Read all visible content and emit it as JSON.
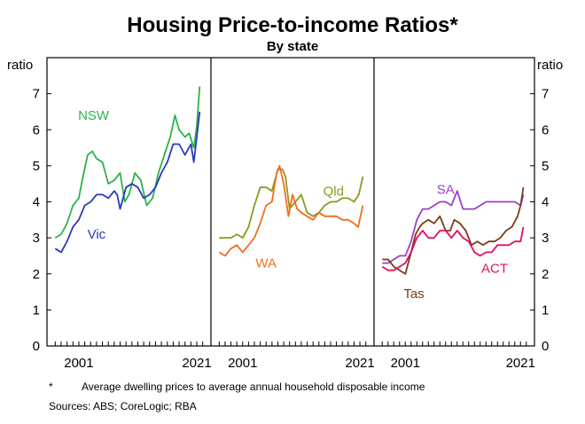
{
  "chart_data": {
    "type": "line",
    "title": "Housing Price-to-income Ratios*",
    "subtitle": "By state",
    "ylabel_left": "ratio",
    "ylabel_right": "ratio",
    "ylim": [
      0,
      8
    ],
    "yticks": [
      0,
      1,
      2,
      3,
      4,
      5,
      6,
      7
    ],
    "xlim": [
      1996.5,
      2022.5
    ],
    "xticks": [
      2001,
      2021
    ],
    "notes": {
      "footnote_marker": "*",
      "footnote": "Average dwelling prices to average annual household disposable income",
      "sources": "Sources: ABS; CoreLogic; RBA"
    },
    "panels": [
      {
        "name": "panel-left",
        "series": [
          {
            "name": "NSW",
            "color": "#2bb34a",
            "x": [
              1997,
              1998,
              1999,
              2000,
              2001,
              2001.7,
              2002.5,
              2003.3,
              2004,
              2005,
              2006,
              2007,
              2008,
              2008.8,
              2009.5,
              2010.5,
              2011.5,
              2012.5,
              2013.5,
              2014.5,
              2015.5,
              2016.5,
              2017.3,
              2018,
              2019,
              2019.7,
              2020.5,
              2021,
              2021.5
            ],
            "values": [
              3.0,
              3.1,
              3.4,
              3.9,
              4.1,
              4.7,
              5.3,
              5.4,
              5.2,
              5.1,
              4.5,
              4.6,
              4.8,
              4.0,
              4.2,
              4.8,
              4.6,
              3.9,
              4.1,
              4.8,
              5.3,
              5.8,
              6.4,
              6.0,
              5.8,
              5.9,
              5.5,
              6.1,
              7.2
            ]
          },
          {
            "name": "Vic",
            "color": "#2b3ab8",
            "x": [
              1997,
              1998,
              1999,
              2000,
              2001,
              2002,
              2003,
              2004,
              2005,
              2006,
              2007,
              2007.5,
              2008,
              2009,
              2010,
              2011,
              2012,
              2013,
              2014,
              2015,
              2016,
              2017,
              2018,
              2019,
              2020,
              2020.5,
              2021,
              2021.5
            ],
            "values": [
              2.7,
              2.6,
              2.9,
              3.3,
              3.5,
              3.9,
              4.0,
              4.2,
              4.2,
              4.1,
              4.3,
              4.2,
              3.8,
              4.4,
              4.5,
              4.4,
              4.1,
              4.2,
              4.4,
              4.8,
              5.1,
              5.6,
              5.6,
              5.3,
              5.6,
              5.1,
              5.8,
              6.5
            ]
          }
        ],
        "labels": [
          {
            "text": "NSW",
            "series": "NSW",
            "x": 2003.5,
            "y": 6.4
          },
          {
            "text": "Vic",
            "series": "Vic",
            "x": 2004.0,
            "y": 3.1
          }
        ]
      },
      {
        "name": "panel-middle",
        "series": [
          {
            "name": "Qld",
            "color": "#8c9a1e",
            "x": [
              1997,
              1998,
              1999,
              2000,
              2001,
              2002,
              2003,
              2004,
              2005,
              2006,
              2007,
              2007.8,
              2008.3,
              2009,
              2010,
              2011,
              2012,
              2013,
              2014,
              2015,
              2016,
              2017,
              2018,
              2019,
              2020,
              2020.8,
              2021.5
            ],
            "values": [
              3.0,
              3.0,
              3.0,
              3.1,
              3.0,
              3.3,
              3.9,
              4.4,
              4.4,
              4.3,
              4.9,
              4.9,
              4.7,
              3.8,
              4.0,
              4.2,
              3.7,
              3.6,
              3.7,
              3.9,
              4.0,
              4.0,
              4.1,
              4.1,
              4.0,
              4.2,
              4.7
            ]
          },
          {
            "name": "WA",
            "color": "#f26d1f",
            "x": [
              1997,
              1998,
              1999,
              2000,
              2001,
              2002,
              2003,
              2004,
              2005,
              2006,
              2006.8,
              2007.3,
              2008,
              2008.8,
              2009.5,
              2010.3,
              2011,
              2012,
              2013,
              2014,
              2015,
              2016,
              2017,
              2018,
              2019,
              2020,
              2020.7,
              2021.5
            ],
            "values": [
              2.6,
              2.5,
              2.7,
              2.8,
              2.6,
              2.8,
              3.0,
              3.4,
              3.9,
              4.0,
              4.8,
              5.0,
              4.5,
              3.6,
              4.2,
              3.8,
              3.7,
              3.6,
              3.5,
              3.7,
              3.6,
              3.6,
              3.6,
              3.5,
              3.5,
              3.4,
              3.3,
              3.9
            ]
          }
        ],
        "labels": [
          {
            "text": "Qld",
            "series": "Qld",
            "x": 2016.5,
            "y": 4.3
          },
          {
            "text": "WA",
            "series": "WA",
            "x": 2005.0,
            "y": 2.3
          }
        ]
      },
      {
        "name": "panel-right",
        "series": [
          {
            "name": "SA",
            "color": "#9b40c8",
            "x": [
              1997,
              1998,
              1999,
              2000,
              2001,
              2002,
              2003,
              2004,
              2005,
              2006,
              2007,
              2008,
              2009,
              2010,
              2011,
              2012,
              2013,
              2014,
              2015,
              2016,
              2017,
              2018,
              2019,
              2020,
              2021,
              2021.5
            ],
            "values": [
              2.3,
              2.3,
              2.4,
              2.5,
              2.5,
              2.9,
              3.5,
              3.8,
              3.8,
              3.9,
              4.0,
              4.0,
              3.9,
              4.3,
              3.8,
              3.8,
              3.8,
              3.9,
              4.0,
              4.0,
              4.0,
              4.0,
              4.0,
              4.0,
              3.9,
              4.2
            ]
          },
          {
            "name": "Tas",
            "color": "#7a3b17",
            "x": [
              1997,
              1998,
              1999,
              2000,
              2001,
              2002,
              2002.8,
              2003.5,
              2004,
              2005,
              2006,
              2007,
              2008,
              2008.8,
              2009.5,
              2010.5,
              2011.5,
              2012.5,
              2013.5,
              2014.5,
              2015.5,
              2016.5,
              2017.5,
              2018.5,
              2019.5,
              2020.5,
              2021,
              2021.5
            ],
            "values": [
              2.4,
              2.4,
              2.2,
              2.1,
              2.0,
              2.6,
              3.1,
              3.3,
              3.4,
              3.5,
              3.4,
              3.6,
              3.2,
              3.2,
              3.5,
              3.4,
              3.2,
              2.8,
              2.9,
              2.8,
              2.9,
              2.9,
              3.0,
              3.2,
              3.3,
              3.6,
              3.9,
              4.4
            ]
          },
          {
            "name": "ACT",
            "color": "#e0105e",
            "x": [
              1997,
              1998,
              1999,
              2000,
              2001,
              2002,
              2003,
              2004,
              2005,
              2006,
              2007,
              2008,
              2009,
              2010,
              2011,
              2012,
              2013,
              2014,
              2015,
              2016,
              2017,
              2018,
              2019,
              2020,
              2021,
              2021.5
            ],
            "values": [
              2.2,
              2.1,
              2.1,
              2.2,
              2.3,
              2.6,
              3.0,
              3.2,
              3.0,
              3.0,
              3.2,
              3.2,
              3.0,
              3.2,
              3.0,
              2.9,
              2.6,
              2.5,
              2.6,
              2.6,
              2.8,
              2.8,
              2.8,
              2.9,
              2.9,
              3.3
            ]
          }
        ],
        "labels": [
          {
            "text": "SA",
            "series": "SA",
            "x": 2008.0,
            "y": 4.35
          },
          {
            "text": "Tas",
            "series": "Tas",
            "x": 2002.5,
            "y": 1.45
          },
          {
            "text": "ACT",
            "series": "ACT",
            "x": 2016.5,
            "y": 2.15
          }
        ]
      }
    ]
  }
}
